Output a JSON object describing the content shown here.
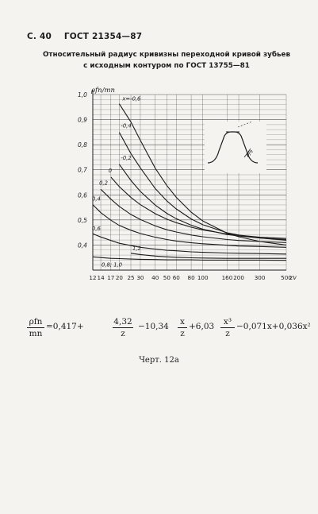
{
  "header": {
    "page_num": "С. 40",
    "standard": "ГОСТ 21354—87"
  },
  "figure": {
    "title_line1": "Относительный радиус кривизны переходной кривой зубьев",
    "title_line2": "с исходным контуром по ГОСТ 13755—81"
  },
  "formula": {
    "lhs_num": "ρfn",
    "lhs_den": "mn",
    "t1": "=0,417+",
    "f1_num": "4,32",
    "f1_den": "z",
    "t2": "−10,34",
    "f2_num": "x",
    "f2_den": "z",
    "t3": "+6,03",
    "f3_num": "x³",
    "f3_den": "z",
    "t4": "−0,071x+0,036x²"
  },
  "caption": "Черт. 12а",
  "chart_data": {
    "type": "line",
    "x_scale": "log",
    "xlim": [
      12,
      500
    ],
    "ylim": [
      0.3,
      1.0
    ],
    "ylabel": "ρfn/mn",
    "xlabel": "zv",
    "x_ticks": [
      "12",
      "14",
      "17",
      "20",
      "25",
      "30",
      "40",
      "50",
      "60",
      "80",
      "100",
      "160",
      "200",
      "300",
      "500"
    ],
    "y_ticks": [
      "0,4",
      "0,5",
      "0,6",
      "0,7",
      "0,8",
      "0,9",
      "1,0"
    ],
    "series": [
      {
        "name": "x=-0,6",
        "x": [
          20,
          25,
          30,
          40,
          50,
          60,
          80,
          100,
          160,
          200,
          300,
          500
        ],
        "y": [
          0.963,
          0.891,
          0.818,
          0.706,
          0.637,
          0.59,
          0.531,
          0.496,
          0.447,
          0.433,
          0.414,
          0.4
        ]
      },
      {
        "name": "-0,4",
        "x": [
          20,
          25,
          30,
          40,
          50,
          60,
          80,
          100,
          160,
          200,
          300,
          500
        ],
        "y": [
          0.849,
          0.765,
          0.708,
          0.625,
          0.576,
          0.544,
          0.504,
          0.481,
          0.449,
          0.44,
          0.428,
          0.419
        ]
      },
      {
        "name": "-0,2",
        "x": [
          20,
          25,
          30,
          40,
          50,
          60,
          80,
          100,
          160,
          200,
          300,
          500
        ],
        "y": [
          0.722,
          0.658,
          0.614,
          0.559,
          0.526,
          0.505,
          0.479,
          0.463,
          0.442,
          0.436,
          0.428,
          0.422
        ]
      },
      {
        "name": "0",
        "x": [
          17,
          20,
          25,
          30,
          40,
          50,
          60,
          80,
          100,
          160,
          200,
          300,
          500
        ],
        "y": [
          0.671,
          0.633,
          0.59,
          0.561,
          0.525,
          0.503,
          0.489,
          0.471,
          0.46,
          0.444,
          0.439,
          0.431,
          0.426
        ]
      },
      {
        "name": "0,2",
        "x": [
          14,
          17,
          20,
          25,
          30,
          40,
          50,
          60,
          80,
          100,
          160,
          200,
          300,
          500
        ],
        "y": [
          0.622,
          0.583,
          0.554,
          0.522,
          0.502,
          0.476,
          0.461,
          0.452,
          0.44,
          0.433,
          0.422,
          0.418,
          0.414,
          0.41
        ]
      },
      {
        "name": "0,4",
        "x": [
          12,
          14,
          17,
          20,
          25,
          30,
          40,
          50,
          60,
          80,
          100,
          160,
          200,
          300,
          500
        ],
        "y": [
          0.561,
          0.529,
          0.499,
          0.478,
          0.459,
          0.446,
          0.431,
          0.422,
          0.416,
          0.409,
          0.405,
          0.399,
          0.396,
          0.394,
          0.391
        ]
      },
      {
        "name": "0,6",
        "x": [
          12,
          14,
          17,
          20,
          25,
          30,
          40,
          50,
          60,
          80,
          100,
          160,
          200,
          300,
          500
        ],
        "y": [
          0.445,
          0.432,
          0.418,
          0.407,
          0.398,
          0.391,
          0.384,
          0.379,
          0.377,
          0.373,
          0.371,
          0.368,
          0.367,
          0.366,
          0.364
        ]
      },
      {
        "name": "0,8; 1,0",
        "x": [
          12,
          14,
          17,
          20,
          25,
          30,
          40,
          50,
          60,
          80,
          100,
          160,
          200,
          300,
          500
        ],
        "y": [
          0.353,
          0.35,
          0.347,
          0.346,
          0.344,
          0.343,
          0.342,
          0.341,
          0.341,
          0.341,
          0.34,
          0.34,
          0.34,
          0.34,
          0.339
        ]
      },
      {
        "name": "1,2",
        "x": [
          25,
          30,
          40,
          50,
          60,
          80,
          100,
          160,
          200,
          300,
          500
        ],
        "y": [
          0.367,
          0.362,
          0.356,
          0.353,
          0.351,
          0.349,
          0.348,
          0.347,
          0.347,
          0.347,
          0.347
        ]
      }
    ],
    "inset_label": "ρfn"
  }
}
